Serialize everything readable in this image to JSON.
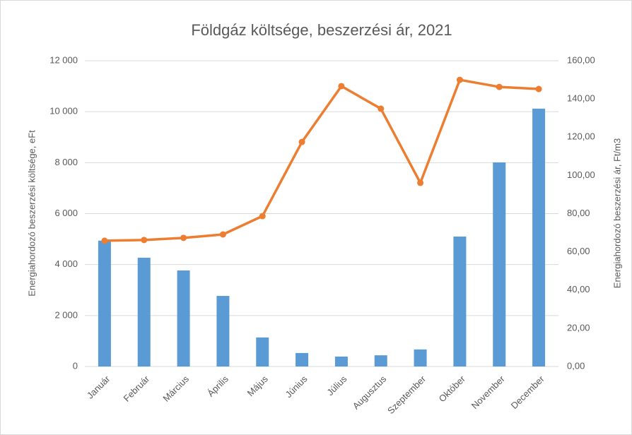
{
  "chart_data": {
    "type": "bar_line",
    "title": "Földgáz költsége, beszerzési ár, 2021",
    "ylabel": "Energiahordozó beszerzési költsége, eFt",
    "y2label": "Energiahordozó beszerzési ár, Ft/m3",
    "categories": [
      "Január",
      "Február",
      "Március",
      "Április",
      "Május",
      "Június",
      "Július",
      "Augusztus",
      "Szeptember",
      "Október",
      "November",
      "December"
    ],
    "series": [
      {
        "type": "bar",
        "color": "#5b9bd5",
        "values": [
          4940,
          4270,
          3770,
          2770,
          1140,
          530,
          390,
          440,
          670,
          5100,
          8010,
          10120
        ]
      },
      {
        "type": "line",
        "axis": "y2",
        "color": "#ed7d31",
        "values": [
          65.8,
          66.2,
          67.3,
          69.1,
          78.7,
          117.5,
          146.7,
          134.9,
          96.1,
          150.0,
          146.3,
          145.2
        ]
      }
    ],
    "ylim": [
      0,
      12000
    ],
    "yticks": [
      0,
      {
        "value": 2000,
        "label": "2 000"
      },
      {
        "value": 4000,
        "label": "4 000"
      },
      {
        "value": 6000,
        "label": "6 000"
      },
      {
        "value": 8000,
        "label": "8 000"
      },
      {
        "value": 10000,
        "label": "10 000"
      },
      {
        "value": 12000,
        "label": "12 000"
      }
    ],
    "y2lim": [
      0,
      160
    ],
    "y2ticks": [
      {
        "value": 0,
        "label": "0,00"
      },
      {
        "value": 20,
        "label": "20,00"
      },
      {
        "value": 40,
        "label": "40,00"
      },
      {
        "value": 60,
        "label": "60,00"
      },
      {
        "value": 80,
        "label": "80,00"
      },
      {
        "value": 100,
        "label": "100,00"
      },
      {
        "value": 120,
        "label": "120,00"
      },
      {
        "value": 140,
        "label": "140,00"
      },
      {
        "value": 160,
        "label": "160,00"
      }
    ],
    "grid": true
  }
}
